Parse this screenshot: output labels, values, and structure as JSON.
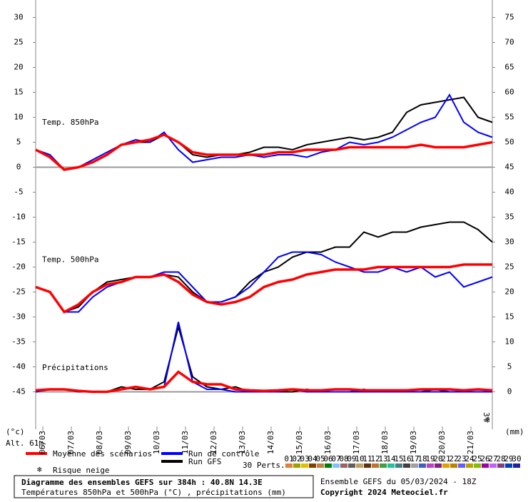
{
  "chart_data": {
    "type": "line",
    "annotations": {
      "alt": "Alt. 61m",
      "left_unit": "(°c)",
      "right_unit": "(mm)",
      "snow_pct": "3%"
    },
    "xlim": [
      0,
      384
    ],
    "xticks": [
      {
        "value": 6,
        "label": "06/03"
      },
      {
        "value": 30,
        "label": "07/03"
      },
      {
        "value": 54,
        "label": "08/03"
      },
      {
        "value": 78,
        "label": "09/03"
      },
      {
        "value": 102,
        "label": "10/03"
      },
      {
        "value": 126,
        "label": "11/03"
      },
      {
        "value": 150,
        "label": "12/03"
      },
      {
        "value": 174,
        "label": "13/03"
      },
      {
        "value": 198,
        "label": "14/03"
      },
      {
        "value": 222,
        "label": "15/03"
      },
      {
        "value": 246,
        "label": "16/03"
      },
      {
        "value": 270,
        "label": "17/03"
      },
      {
        "value": 294,
        "label": "18/03"
      },
      {
        "value": 318,
        "label": "19/03"
      },
      {
        "value": 342,
        "label": "20/03"
      },
      {
        "value": 366,
        "label": "21/03"
      }
    ],
    "ylim": [
      -52.5,
      33.5
    ],
    "yticks": [
      -45,
      -40,
      -35,
      -30,
      -25,
      -20,
      -15,
      -10,
      -5,
      0,
      5,
      10,
      15,
      20,
      25,
      30
    ],
    "y2lim": [
      -7.5,
      78.5
    ],
    "y2ticks": [
      0,
      5,
      10,
      15,
      20,
      25,
      30,
      35,
      40,
      45,
      50,
      55,
      60,
      65,
      70,
      75
    ],
    "reference_lines": [
      0,
      -45
    ],
    "x": [
      0,
      12,
      24,
      36,
      48,
      60,
      72,
      84,
      96,
      108,
      120,
      132,
      144,
      156,
      168,
      180,
      192,
      204,
      216,
      228,
      240,
      252,
      264,
      276,
      288,
      300,
      312,
      324,
      336,
      348,
      360,
      372,
      384
    ],
    "panels": [
      {
        "label": "Temp. 850hPa",
        "series": [
          {
            "name": "Run GFS",
            "color": "#000000",
            "values": [
              3.5,
              2,
              -0.5,
              0,
              1,
              2.5,
              4.5,
              5,
              5,
              6.5,
              5,
              2.5,
              2,
              2.5,
              2.5,
              3,
              4,
              4,
              3.5,
              4.5,
              5,
              5.5,
              6,
              5.5,
              6,
              7,
              11,
              12.5,
              13,
              13.5,
              14,
              10,
              9
            ]
          },
          {
            "name": "Run de contrôle",
            "color": "#0000ff",
            "values": [
              3.5,
              2.5,
              -0.5,
              0,
              1.5,
              3,
              4.5,
              5.5,
              5,
              7,
              3.5,
              1,
              1.5,
              2,
              2,
              2.5,
              2,
              2.5,
              2.5,
              2,
              3,
              3.5,
              5,
              4.5,
              5,
              6,
              7.5,
              9,
              10,
              14.5,
              9,
              7,
              6
            ]
          },
          {
            "name": "Moyenne des scénarios",
            "color": "#ff0000",
            "values": [
              3.5,
              2,
              -0.5,
              0,
              1,
              2.5,
              4.5,
              5,
              5.5,
              6.5,
              5,
              3,
              2.5,
              2.5,
              2.5,
              2.5,
              2.5,
              3,
              3,
              3.5,
              3.5,
              3.5,
              4,
              4,
              4,
              4,
              4,
              4.5,
              4,
              4,
              4,
              4.5,
              5
            ]
          }
        ]
      },
      {
        "label": "Temp. 500hPa",
        "series": [
          {
            "name": "Run GFS",
            "color": "#000000",
            "values": [
              -24,
              -25,
              -29,
              -28,
              -25,
              -23,
              -22.5,
              -22,
              -22,
              -21.5,
              -22,
              -25,
              -27,
              -27,
              -26,
              -23,
              -21,
              -20,
              -18,
              -17,
              -17,
              -16,
              -16,
              -13,
              -14,
              -13,
              -13,
              -12,
              -11.5,
              -11,
              -11,
              -12.5,
              -15
            ]
          },
          {
            "name": "Run de contrôle",
            "color": "#0000ff",
            "values": [
              -24,
              -25,
              -29,
              -29,
              -26,
              -24,
              -23,
              -22,
              -22,
              -21,
              -21,
              -24,
              -27,
              -27,
              -26,
              -24,
              -21,
              -18,
              -17,
              -17,
              -17.5,
              -19,
              -20,
              -21,
              -21,
              -20,
              -21,
              -20,
              -22,
              -21,
              -24,
              -23,
              -22
            ]
          },
          {
            "name": "Moyenne des scénarios",
            "color": "#ff0000",
            "values": [
              -24,
              -25,
              -29,
              -27.5,
              -25,
              -23.5,
              -23,
              -22,
              -22,
              -21.5,
              -23,
              -25.5,
              -27,
              -27.5,
              -27,
              -26,
              -24,
              -23,
              -22.5,
              -21.5,
              -21,
              -20.5,
              -20.5,
              -20.5,
              -20,
              -20,
              -20,
              -20,
              -20,
              -20,
              -19.5,
              -19.5,
              -19.5
            ]
          }
        ]
      },
      {
        "label": "Précipitations",
        "series": [
          {
            "name": "Run GFS",
            "color": "#000000",
            "axis": "y2",
            "values": [
              0,
              0.5,
              0.5,
              0,
              0,
              0,
              1,
              0.5,
              0.5,
              2,
              13,
              3,
              1,
              0.5,
              1,
              0,
              0,
              0,
              0,
              0.5,
              0,
              0,
              0,
              0.5,
              0,
              0,
              0,
              0,
              0.5,
              0,
              0,
              0,
              0
            ]
          },
          {
            "name": "Run de contrôle",
            "color": "#0000ff",
            "axis": "y2",
            "values": [
              0,
              0.5,
              0.5,
              0,
              0,
              0,
              0.5,
              1,
              0.5,
              1,
              14,
              2,
              0.5,
              0.5,
              0,
              0,
              0,
              0,
              0.5,
              0,
              0,
              0,
              0,
              0,
              0,
              0,
              0,
              0,
              0,
              0,
              0,
              0,
              0
            ]
          },
          {
            "name": "Moyenne des scénarios",
            "color": "#ff0000",
            "axis": "y2",
            "values": [
              0.3,
              0.5,
              0.5,
              0.2,
              0,
              0,
              0.5,
              1,
              0.5,
              1,
              4,
              2,
              1.5,
              1.5,
              0.5,
              0.3,
              0.2,
              0.3,
              0.5,
              0.3,
              0.3,
              0.5,
              0.5,
              0.3,
              0.3,
              0.3,
              0.3,
              0.5,
              0.5,
              0.5,
              0.3,
              0.5,
              0.3
            ]
          }
        ]
      }
    ],
    "legend": {
      "mean": "Moyenne des scénarios",
      "control": "Run de contrôle",
      "gfs": "Run GFS",
      "snow": "Risque neige",
      "perts": "30 Perts."
    },
    "members": [
      {
        "name": "01",
        "color": "#e08040"
      },
      {
        "name": "02",
        "color": "#a0a000"
      },
      {
        "name": "03",
        "color": "#e0c000"
      },
      {
        "name": "04",
        "color": "#804000"
      },
      {
        "name": "05",
        "color": "#c08040"
      },
      {
        "name": "06",
        "color": "#008000"
      },
      {
        "name": "07",
        "color": "#80c0ff"
      },
      {
        "name": "08",
        "color": "#a06060"
      },
      {
        "name": "09",
        "color": "#606060"
      },
      {
        "name": "10",
        "color": "#c0a060"
      },
      {
        "name": "11",
        "color": "#603010"
      },
      {
        "name": "12",
        "color": "#c07030"
      },
      {
        "name": "13",
        "color": "#40a040"
      },
      {
        "name": "14",
        "color": "#20c0a0"
      },
      {
        "name": "15",
        "color": "#408080"
      },
      {
        "name": "16",
        "color": "#404040"
      },
      {
        "name": "17",
        "color": "#a0a0a0"
      },
      {
        "name": "18",
        "color": "#4060c0"
      },
      {
        "name": "19",
        "color": "#c040c0"
      },
      {
        "name": "20",
        "color": "#802080"
      },
      {
        "name": "21",
        "color": "#e0a000"
      },
      {
        "name": "22",
        "color": "#c08000"
      },
      {
        "name": "23",
        "color": "#6060ff"
      },
      {
        "name": "24",
        "color": "#c0a000"
      },
      {
        "name": "25",
        "color": "#80c000"
      },
      {
        "name": "26",
        "color": "#a000a0"
      },
      {
        "name": "27",
        "color": "#c060ff"
      },
      {
        "name": "28",
        "color": "#804080"
      },
      {
        "name": "29",
        "color": "#0040c0"
      },
      {
        "name": "30",
        "color": "#2020a0"
      }
    ],
    "footer": {
      "title": "Diagramme des ensembles GEFS sur 384h : 40.8N 14.3E",
      "subtitle": "Températures 850hPa et 500hPa (°C) , précipitations (mm)",
      "run": "Ensemble GEFS du 05/03/2024 - 18Z",
      "copyright": "Copyright 2024 Meteociel.fr"
    }
  }
}
